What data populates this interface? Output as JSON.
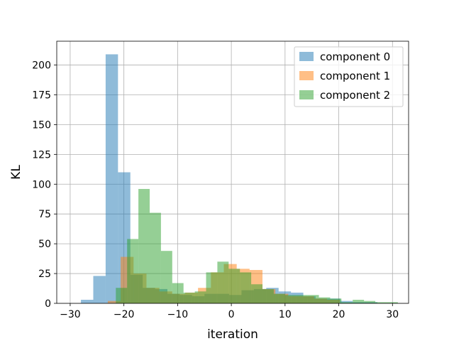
{
  "chart_data": {
    "type": "histogram",
    "title": "",
    "xlabel": "iteration",
    "ylabel": "KL",
    "xlim": [
      -32.5,
      33.0
    ],
    "ylim": [
      0,
      220
    ],
    "xticks": [
      -30,
      -20,
      -10,
      0,
      10,
      20,
      30
    ],
    "yticks": [
      0,
      25,
      50,
      75,
      100,
      125,
      150,
      175,
      200
    ],
    "grid": true,
    "legend_position": "top-right",
    "series": [
      {
        "name": "component 0",
        "color": "#1f77b4",
        "alpha": 0.5,
        "bins": [
          [
            -28.0,
            -25.7,
            3
          ],
          [
            -25.7,
            -23.4,
            23
          ],
          [
            -23.4,
            -21.1,
            209
          ],
          [
            -21.1,
            -18.8,
            110
          ],
          [
            -18.8,
            -16.5,
            24
          ],
          [
            -16.5,
            -14.2,
            13
          ],
          [
            -14.2,
            -11.9,
            12
          ],
          [
            -11.9,
            -9.6,
            8
          ],
          [
            -9.6,
            -7.3,
            7
          ],
          [
            -7.3,
            -5.0,
            6
          ],
          [
            -5.0,
            -2.7,
            8
          ],
          [
            -2.7,
            -0.4,
            8
          ],
          [
            -0.4,
            1.9,
            7
          ],
          [
            1.9,
            4.2,
            11
          ],
          [
            4.2,
            6.5,
            12
          ],
          [
            6.5,
            8.8,
            13
          ],
          [
            8.8,
            11.1,
            10
          ],
          [
            11.1,
            13.4,
            9
          ],
          [
            13.4,
            15.7,
            6
          ],
          [
            15.7,
            18.0,
            4
          ],
          [
            18.0,
            20.3,
            4
          ],
          [
            20.3,
            22.6,
            2
          ],
          [
            22.6,
            24.9,
            1
          ],
          [
            24.9,
            27.2,
            1
          ]
        ]
      },
      {
        "name": "component 1",
        "color": "#ff7f0e",
        "alpha": 0.5,
        "bins": [
          [
            -23.0,
            -20.6,
            2
          ],
          [
            -20.6,
            -18.2,
            39
          ],
          [
            -18.2,
            -15.8,
            25
          ],
          [
            -15.8,
            -13.4,
            13
          ],
          [
            -13.4,
            -11.0,
            10
          ],
          [
            -11.0,
            -8.6,
            8
          ],
          [
            -8.6,
            -6.2,
            9
          ],
          [
            -6.2,
            -3.8,
            13
          ],
          [
            -3.8,
            -1.4,
            26
          ],
          [
            -1.4,
            1.0,
            33
          ],
          [
            1.0,
            3.4,
            29
          ],
          [
            3.4,
            5.8,
            28
          ],
          [
            5.8,
            8.2,
            12
          ],
          [
            8.2,
            10.6,
            8
          ],
          [
            10.6,
            13.0,
            6
          ],
          [
            13.0,
            15.4,
            6
          ],
          [
            15.4,
            17.8,
            4
          ],
          [
            17.8,
            20.2,
            3
          ]
        ]
      },
      {
        "name": "component 2",
        "color": "#2ca02c",
        "alpha": 0.5,
        "bins": [
          [
            -21.5,
            -19.4,
            13
          ],
          [
            -19.4,
            -17.3,
            54
          ],
          [
            -17.3,
            -15.2,
            96
          ],
          [
            -15.2,
            -13.1,
            76
          ],
          [
            -13.1,
            -11.0,
            44
          ],
          [
            -11.0,
            -8.9,
            17
          ],
          [
            -8.9,
            -6.8,
            9
          ],
          [
            -6.8,
            -4.7,
            10
          ],
          [
            -4.7,
            -2.6,
            26
          ],
          [
            -2.6,
            -0.5,
            35
          ],
          [
            -0.5,
            1.6,
            29
          ],
          [
            1.6,
            3.7,
            26
          ],
          [
            3.7,
            5.8,
            16
          ],
          [
            5.8,
            7.9,
            12
          ],
          [
            7.9,
            10.0,
            8
          ],
          [
            10.0,
            12.1,
            7
          ],
          [
            12.1,
            14.2,
            7
          ],
          [
            14.2,
            16.3,
            7
          ],
          [
            16.3,
            18.4,
            5
          ],
          [
            18.4,
            20.5,
            4
          ],
          [
            20.5,
            22.6,
            1
          ],
          [
            22.6,
            24.7,
            3
          ],
          [
            24.7,
            26.8,
            2
          ],
          [
            26.8,
            28.9,
            1
          ],
          [
            28.9,
            31.0,
            1
          ]
        ]
      }
    ]
  }
}
